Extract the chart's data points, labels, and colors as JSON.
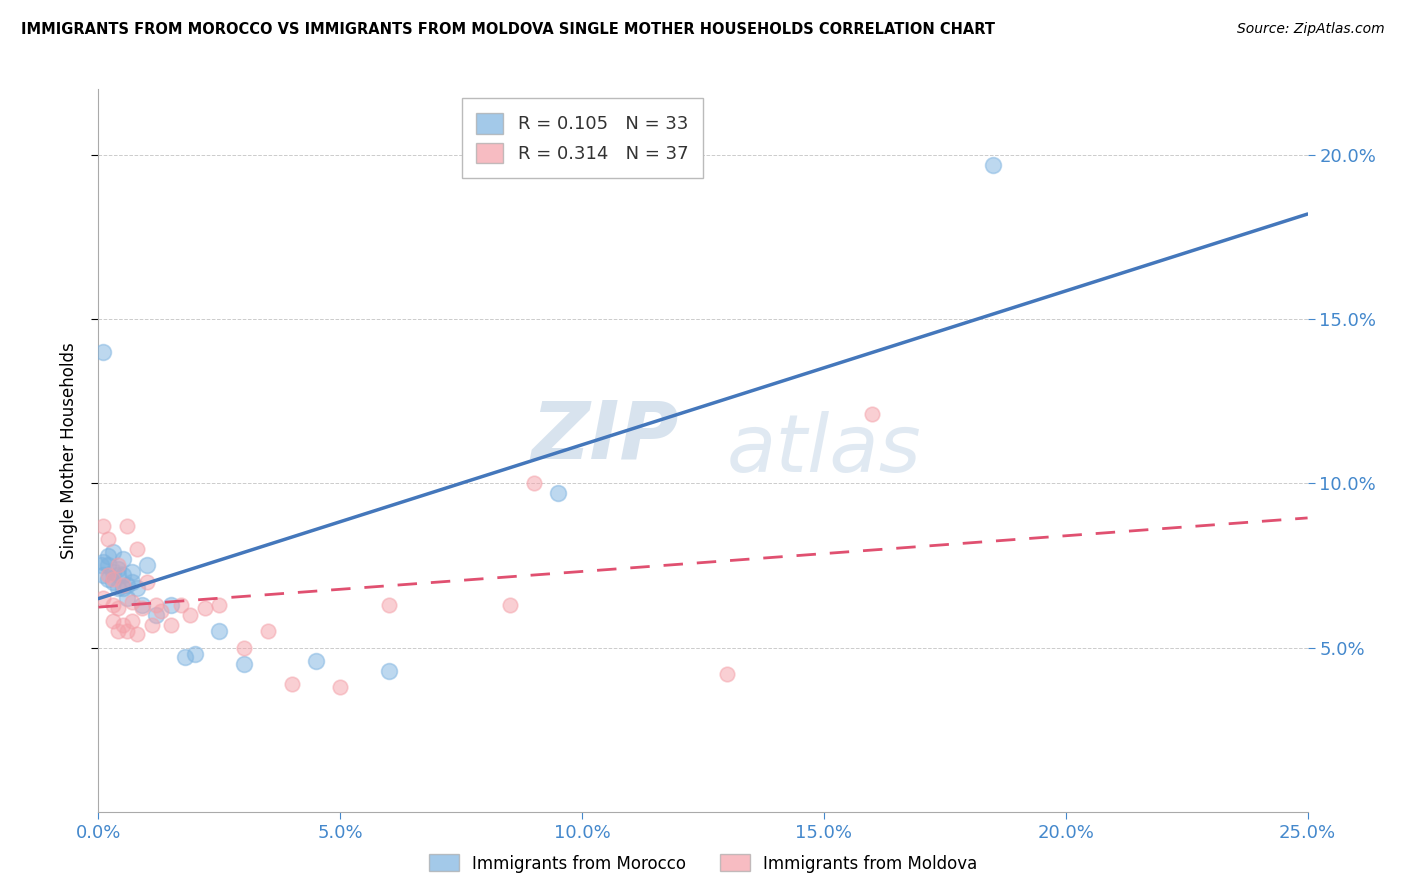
{
  "title": "IMMIGRANTS FROM MOROCCO VS IMMIGRANTS FROM MOLDOVA SINGLE MOTHER HOUSEHOLDS CORRELATION CHART",
  "source": "Source: ZipAtlas.com",
  "ylabel": "Single Mother Households",
  "xlim": [
    0.0,
    0.25
  ],
  "ylim": [
    0.0,
    0.22
  ],
  "xticks": [
    0.0,
    0.05,
    0.1,
    0.15,
    0.2,
    0.25
  ],
  "yticks": [
    0.05,
    0.1,
    0.15,
    0.2
  ],
  "ytick_labels": [
    "5.0%",
    "10.0%",
    "15.0%",
    "20.0%"
  ],
  "xtick_labels": [
    "0.0%",
    "5.0%",
    "10.0%",
    "15.0%",
    "20.0%",
    "25.0%"
  ],
  "morocco_color": "#7DB3E0",
  "moldova_color": "#F4A0A8",
  "morocco_line_color": "#4477BB",
  "moldova_line_color": "#E05070",
  "morocco_R": 0.105,
  "morocco_N": 33,
  "moldova_R": 0.314,
  "moldova_N": 37,
  "legend_label_morocco": "Immigrants from Morocco",
  "legend_label_moldova": "Immigrants from Moldova",
  "morocco_x": [
    0.0005,
    0.001,
    0.001,
    0.001,
    0.002,
    0.002,
    0.002,
    0.003,
    0.003,
    0.003,
    0.004,
    0.004,
    0.004,
    0.005,
    0.005,
    0.005,
    0.006,
    0.006,
    0.007,
    0.007,
    0.008,
    0.009,
    0.01,
    0.012,
    0.015,
    0.018,
    0.02,
    0.025,
    0.03,
    0.045,
    0.06,
    0.095,
    0.185
  ],
  "morocco_y": [
    0.075,
    0.14,
    0.076,
    0.072,
    0.078,
    0.075,
    0.071,
    0.073,
    0.07,
    0.079,
    0.072,
    0.074,
    0.068,
    0.077,
    0.072,
    0.068,
    0.069,
    0.065,
    0.073,
    0.07,
    0.068,
    0.063,
    0.075,
    0.06,
    0.063,
    0.047,
    0.048,
    0.055,
    0.045,
    0.046,
    0.043,
    0.097,
    0.197
  ],
  "moldova_x": [
    0.001,
    0.001,
    0.002,
    0.002,
    0.003,
    0.003,
    0.003,
    0.004,
    0.004,
    0.004,
    0.005,
    0.005,
    0.006,
    0.006,
    0.007,
    0.007,
    0.008,
    0.008,
    0.009,
    0.01,
    0.011,
    0.012,
    0.013,
    0.015,
    0.017,
    0.019,
    0.022,
    0.025,
    0.03,
    0.035,
    0.04,
    0.05,
    0.06,
    0.085,
    0.09,
    0.13,
    0.16
  ],
  "moldova_y": [
    0.065,
    0.087,
    0.072,
    0.083,
    0.071,
    0.063,
    0.058,
    0.075,
    0.062,
    0.055,
    0.069,
    0.057,
    0.055,
    0.087,
    0.064,
    0.058,
    0.08,
    0.054,
    0.062,
    0.07,
    0.057,
    0.063,
    0.061,
    0.057,
    0.063,
    0.06,
    0.062,
    0.063,
    0.05,
    0.055,
    0.039,
    0.038,
    0.063,
    0.063,
    0.1,
    0.042,
    0.121
  ],
  "watermark_zip": "ZIP",
  "watermark_atlas": "atlas",
  "background_color": "#FFFFFF",
  "grid_color": "#CCCCCC"
}
